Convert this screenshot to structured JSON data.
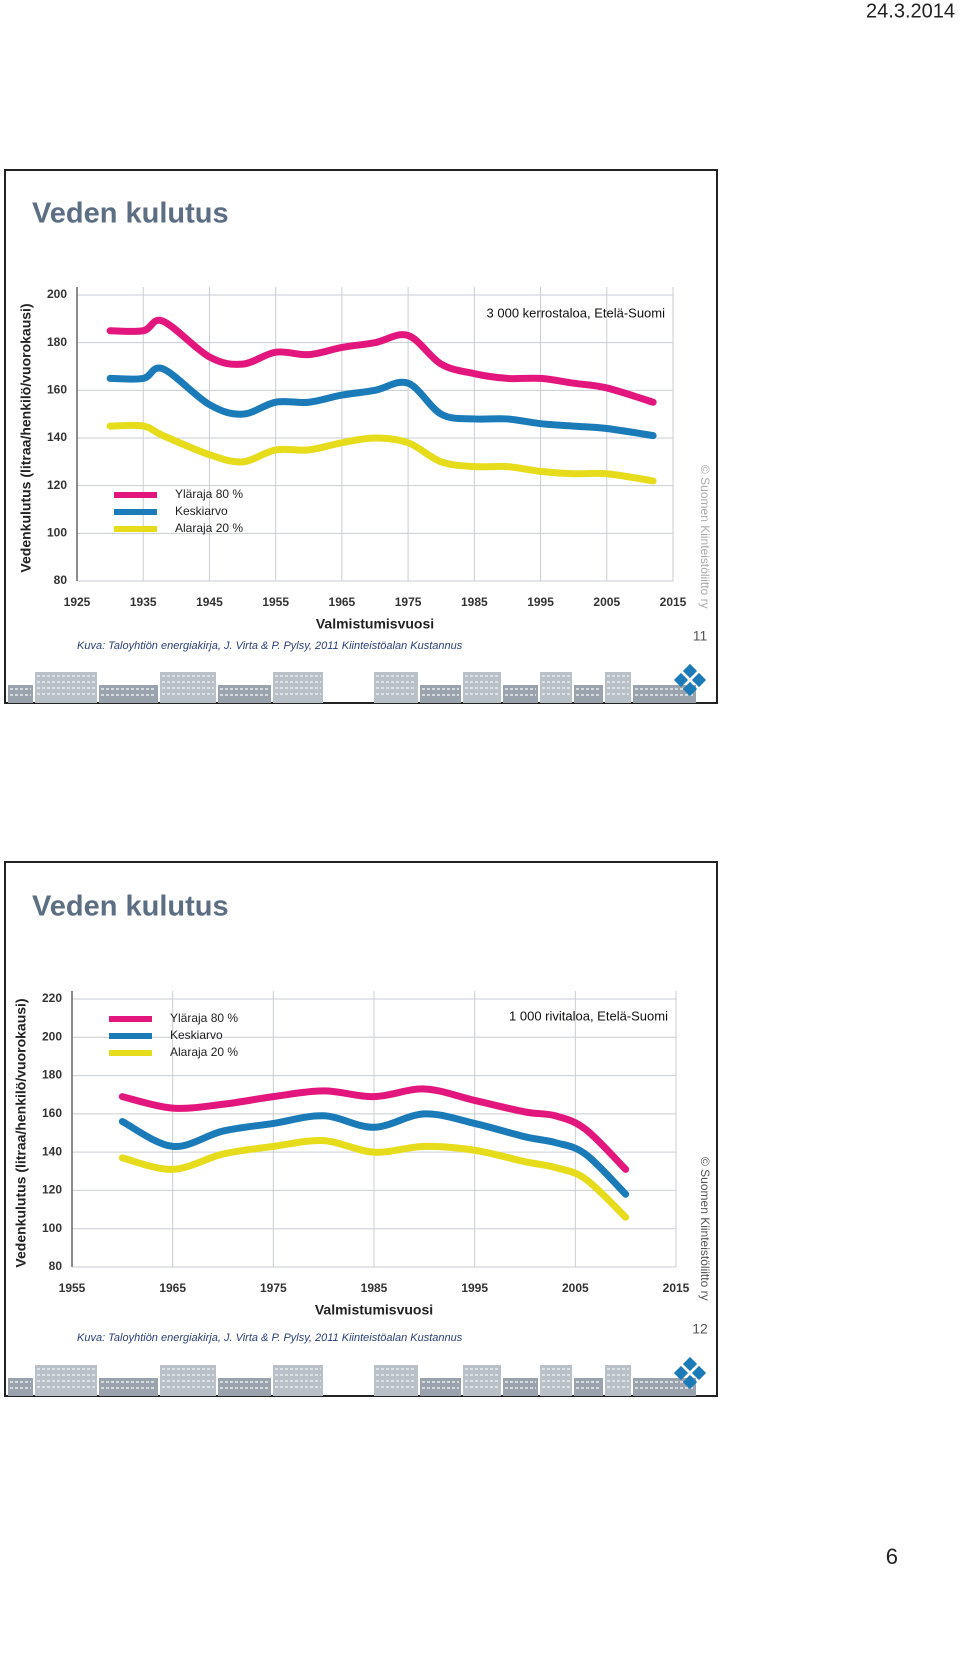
{
  "header": {
    "date": "24.3.2014"
  },
  "slides": [
    {
      "title": "Veden kulutus",
      "caption": "Kuva: Taloyhtiön energiakirja, J. Virta & P. Pylsy, 2011 Kiinteistöalan Kustannus",
      "number": "11",
      "copyright": "© Suomen Kiinteistöliitto ry"
    },
    {
      "title": "Veden kulutus",
      "caption": "Kuva: Taloyhtiön energiakirja, J. Virta & P. Pylsy, 2011 Kiinteistöalan Kustannus",
      "number": "12",
      "copyright": "© Suomen Kiinteistöliitto ry"
    }
  ],
  "chart_data": [
    {
      "type": "line",
      "annotation": "3 000 kerrostaloa, Etelä-Suomi",
      "x_label": "Valmistumisvuosi",
      "y_label": "Vedenkulutus (litraa/henkilö/vuorokausi)",
      "x": [
        1930,
        1935,
        1938,
        1945,
        1950,
        1955,
        1960,
        1965,
        1970,
        1975,
        1980,
        1985,
        1990,
        1995,
        2000,
        2005,
        2012
      ],
      "series": [
        {
          "name": "Yläraja 80 %",
          "color": "#e3167d",
          "values": [
            185,
            185,
            189,
            174,
            171,
            176,
            175,
            178,
            180,
            183,
            171,
            167,
            165,
            165,
            163,
            161,
            155
          ]
        },
        {
          "name": "Keskiarvo",
          "color": "#1a7bb8",
          "values": [
            165,
            165,
            169,
            154,
            150,
            155,
            155,
            158,
            160,
            163,
            150,
            148,
            148,
            146,
            145,
            144,
            141
          ]
        },
        {
          "name": "Alaraja 20 %",
          "color": "#e6dc1c",
          "values": [
            145,
            145,
            141,
            133,
            130,
            135,
            135,
            138,
            140,
            138,
            130,
            128,
            128,
            126,
            125,
            125,
            122
          ]
        }
      ],
      "xlim": [
        1925,
        2015
      ],
      "xticks": [
        1925,
        1935,
        1945,
        1955,
        1965,
        1975,
        1985,
        1995,
        2005,
        2015
      ],
      "ylim": [
        80,
        200
      ],
      "yticks": [
        80,
        100,
        120,
        140,
        160,
        180,
        200
      ],
      "grid": true,
      "legend": "lower left"
    },
    {
      "type": "line",
      "annotation": "1 000 rivitaloa, Etelä-Suomi",
      "x_label": "Valmistumisvuosi",
      "y_label": "Vedenkulutus (litraa/henkilö/vuorokausi)",
      "x": [
        1960,
        1965,
        1970,
        1975,
        1980,
        1985,
        1990,
        1995,
        2000,
        2003,
        2006,
        2010
      ],
      "series": [
        {
          "name": "Yläraja 80 %",
          "color": "#e3167d",
          "values": [
            169,
            163,
            165,
            169,
            172,
            169,
            173,
            167,
            161,
            159,
            152,
            131
          ]
        },
        {
          "name": "Keskiarvo",
          "color": "#1a7bb8",
          "values": [
            156,
            143,
            151,
            155,
            159,
            153,
            160,
            155,
            148,
            145,
            139,
            118
          ]
        },
        {
          "name": "Alaraja 20 %",
          "color": "#e6dc1c",
          "values": [
            137,
            131,
            139,
            143,
            146,
            140,
            143,
            141,
            135,
            132,
            126,
            106
          ]
        }
      ],
      "xlim": [
        1955,
        2015
      ],
      "xticks": [
        1955,
        1965,
        1975,
        1985,
        1995,
        2005,
        2015
      ],
      "ylim": [
        80,
        220
      ],
      "yticks": [
        80,
        100,
        120,
        140,
        160,
        180,
        200,
        220
      ],
      "grid": true,
      "legend": "upper left"
    }
  ],
  "page_number": "6"
}
